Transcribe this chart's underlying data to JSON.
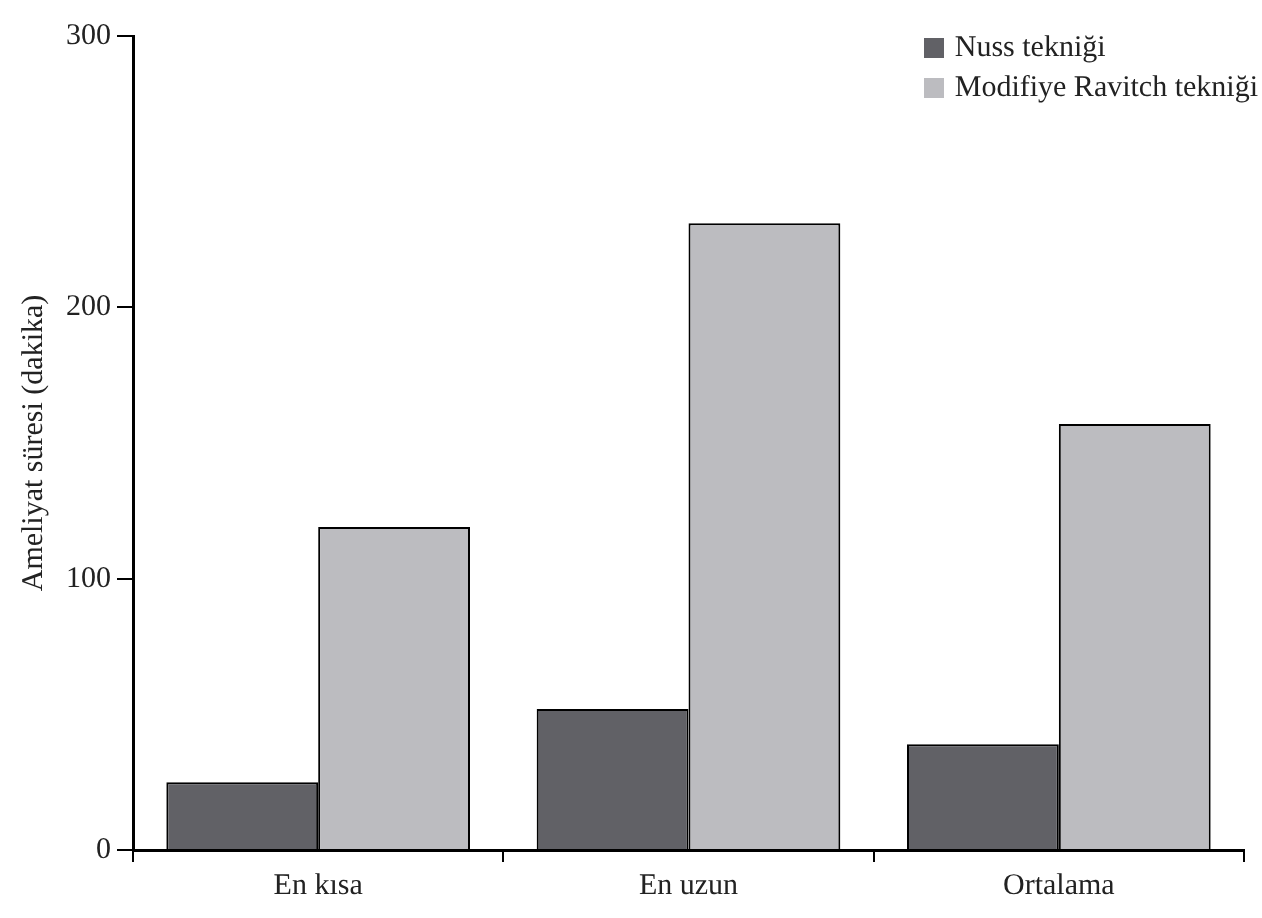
{
  "chart_data": {
    "type": "bar",
    "ylabel": "Ameliyat süresi (dakika)",
    "categories": [
      "En kısa",
      "En uzun",
      "Ortalama"
    ],
    "series": [
      {
        "name": "Nuss tekniği",
        "color": "#616166",
        "values": [
          25,
          52,
          39
        ]
      },
      {
        "name": "Modifiye Ravitch tekniği",
        "color": "#bcbcc0",
        "values": [
          119,
          231,
          157
        ]
      }
    ],
    "ylim": [
      0,
      300
    ],
    "yticks": [
      0,
      100,
      200,
      300
    ],
    "grid": false,
    "legend": "top right"
  }
}
